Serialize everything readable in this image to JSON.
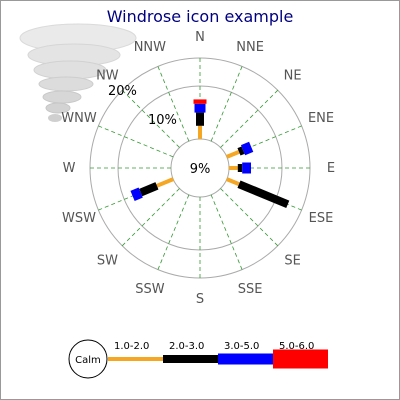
{
  "chart_data": {
    "type": "windrose",
    "title": "Windrose icon example",
    "center_label": "9%",
    "calm_label": "Calm",
    "directions": [
      "N",
      "NNE",
      "NE",
      "ENE",
      "E",
      "ESE",
      "SE",
      "SSE",
      "S",
      "SSW",
      "SW",
      "WSW",
      "W",
      "WNW",
      "NW",
      "NNW"
    ],
    "ring_labels": [
      "10%",
      "20%"
    ],
    "ring_label_direction": "NNW",
    "grid": true,
    "legend": {
      "position": "bottom",
      "ranges": [
        {
          "label": "1.0-2.0",
          "color": "#f5a623"
        },
        {
          "label": "2.0-3.0",
          "color": "#000000"
        },
        {
          "label": "3.0-5.0",
          "color": "#0000ff"
        },
        {
          "label": "5.0-6.0",
          "color": "#ff0000"
        }
      ]
    },
    "series": [
      {
        "direction": "N",
        "values": [
          3,
          3,
          2,
          1
        ]
      },
      {
        "direction": "ENE",
        "values": [
          3,
          1,
          2
        ]
      },
      {
        "direction": "E",
        "values": [
          2,
          1,
          2
        ]
      },
      {
        "direction": "ESE",
        "values": [
          3,
          12
        ]
      },
      {
        "direction": "WSW",
        "values": [
          4,
          4,
          2
        ]
      }
    ],
    "icon": "tornado-icon"
  }
}
